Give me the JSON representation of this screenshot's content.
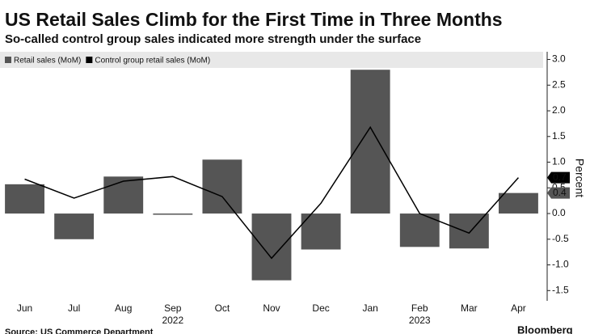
{
  "chart_data": {
    "type": "bar-line",
    "title": "US Retail Sales Climb for the First Time in Three Months",
    "subtitle": "So-called control group sales indicated more strength under the surface",
    "y_label": "Percent",
    "source": "Source: US Commerce Department",
    "brand": "Bloomberg",
    "categories": [
      "Jun",
      "Jul",
      "Aug",
      "Sep",
      "Oct",
      "Nov",
      "Dec",
      "Jan",
      "Feb",
      "Mar",
      "Apr"
    ],
    "year_labels": [
      null,
      null,
      null,
      "2022",
      null,
      null,
      null,
      null,
      "2023",
      null,
      null
    ],
    "series": [
      {
        "name": "Retail sales (MoM)",
        "kind": "bar",
        "color": "#555555",
        "values": [
          0.57,
          -0.5,
          0.72,
          -0.02,
          1.05,
          -1.3,
          -0.7,
          2.8,
          -0.65,
          -0.68,
          0.4
        ],
        "end_label": "0.4"
      },
      {
        "name": "Control group retail sales (MoM)",
        "kind": "line",
        "color": "#000000",
        "values": [
          0.67,
          0.3,
          0.63,
          0.72,
          0.33,
          -0.87,
          0.2,
          1.68,
          0.0,
          -0.38,
          0.7
        ],
        "end_label": "0.7"
      }
    ],
    "ylim": [
      -1.7,
      3.15
    ],
    "yticks": [
      {
        "value": 3,
        "label": "3.0"
      },
      2.5,
      {
        "value": 2,
        "label": "2.0"
      },
      1.5,
      {
        "value": 1,
        "label": "1.0"
      },
      0.5,
      {
        "value": 0,
        "label": "0.0"
      },
      -0.5,
      {
        "value": -1,
        "label": "-1.0"
      },
      -1.5
    ],
    "legend": "top-left"
  }
}
